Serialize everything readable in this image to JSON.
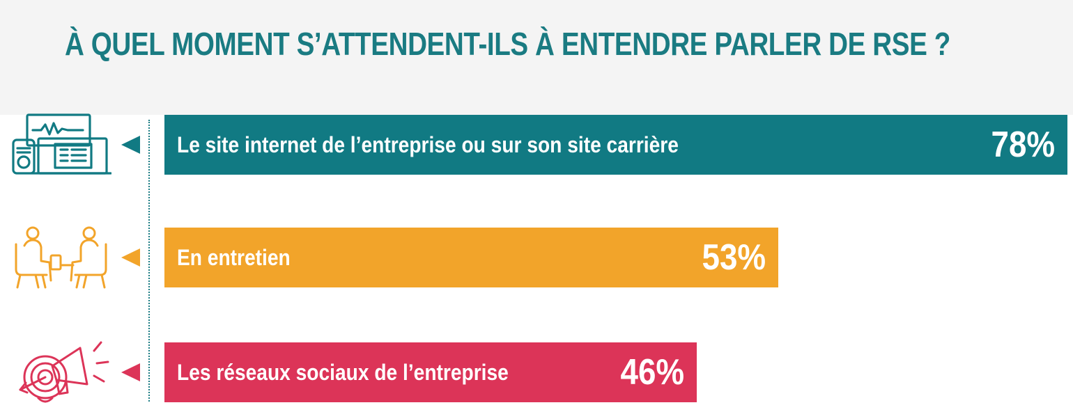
{
  "title": "À QUEL MOMENT S’ATTENDENT-ILS À ENTENDRE PARLER DE RSE ?",
  "colors": {
    "title": "#1a7b82",
    "header_background": "#f4f4f4",
    "axis": "#1a7b82"
  },
  "chart_data": {
    "type": "bar",
    "orientation": "horizontal",
    "title": "À QUEL MOMENT S’ATTENDENT-ILS À ENTENDRE PARLER DE RSE ?",
    "xlim": [
      0,
      100
    ],
    "grid": false,
    "legend": "none",
    "categories": [
      "Le site internet de l’entreprise ou sur son site carrière",
      "En entretien",
      "Les réseaux sociaux de l’entreprise"
    ],
    "values": [
      78,
      53,
      46
    ],
    "bars": [
      {
        "label": "Le site internet de l’entreprise ou sur son site carrière",
        "value": 78,
        "value_label": "78%",
        "color": "#117a83",
        "icon": "website-devices-icon"
      },
      {
        "label": "En entretien",
        "value": 53,
        "value_label": "53%",
        "color": "#f2a42a",
        "icon": "interview-icon"
      },
      {
        "label": "Les réseaux sociaux de l’entreprise",
        "value": 46,
        "value_label": "46%",
        "color": "#dc3458",
        "icon": "megaphone-target-icon"
      }
    ]
  }
}
